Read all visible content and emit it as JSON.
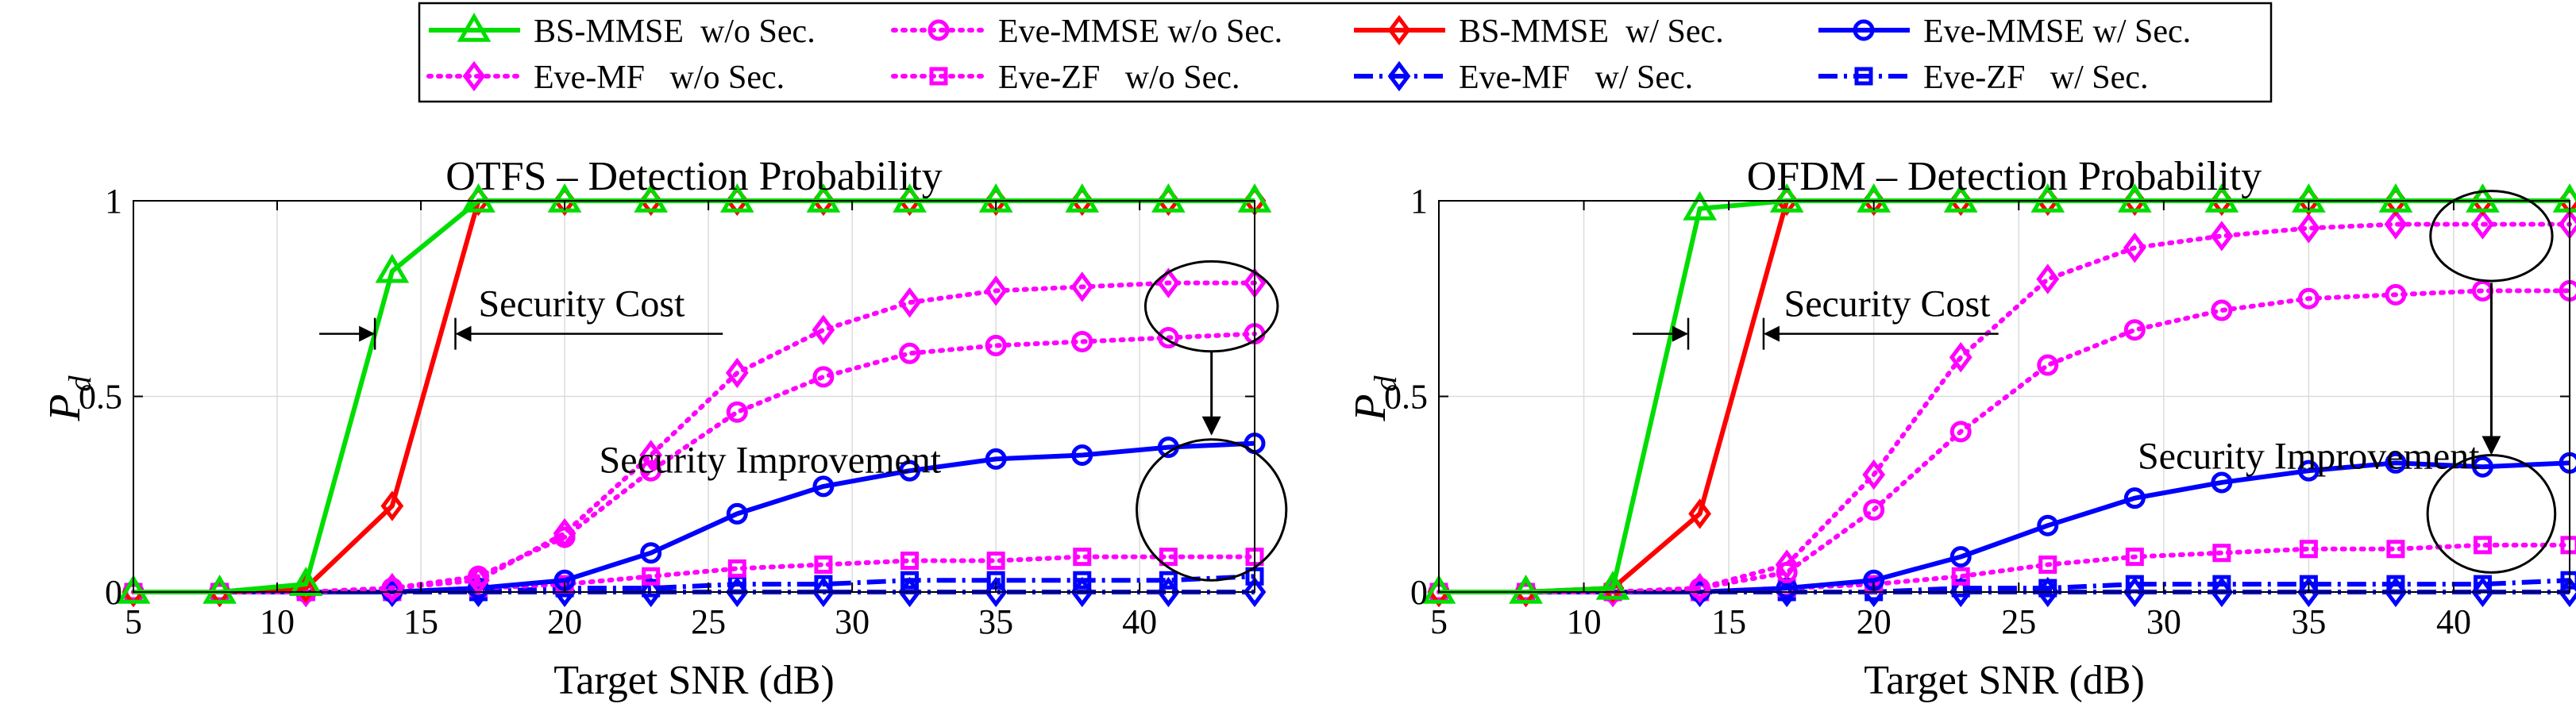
{
  "legend": {
    "entries": [
      {
        "label": "BS-MMSE  w/o Sec.",
        "series": "bs_mmse_wo"
      },
      {
        "label": "Eve-MMSE w/o Sec.",
        "series": "eve_mmse_wo"
      },
      {
        "label": "BS-MMSE  w/ Sec.",
        "series": "bs_mmse_w"
      },
      {
        "label": "Eve-MMSE w/ Sec.",
        "series": "eve_mmse_w"
      },
      {
        "label": "Eve-MF   w/o Sec.",
        "series": "eve_mf_wo"
      },
      {
        "label": "Eve-ZF   w/o Sec.",
        "series": "eve_zf_wo"
      },
      {
        "label": "Eve-MF   w/ Sec.",
        "series": "eve_mf_w"
      },
      {
        "label": "Eve-ZF   w/ Sec.",
        "series": "eve_zf_w"
      }
    ]
  },
  "styles": {
    "bs_mmse_wo": {
      "color": "#00dd00",
      "dash": "solid",
      "marker": "triangle"
    },
    "bs_mmse_w": {
      "color": "#ff0000",
      "dash": "solid",
      "marker": "diamond"
    },
    "eve_mmse_wo": {
      "color": "#ff00ff",
      "dash": "dotted",
      "marker": "circle"
    },
    "eve_mf_wo": {
      "color": "#ff00ff",
      "dash": "dotted",
      "marker": "diamond"
    },
    "eve_zf_wo": {
      "color": "#ff00ff",
      "dash": "dotted",
      "marker": "square"
    },
    "eve_mmse_w": {
      "color": "#0000ff",
      "dash": "solid",
      "marker": "circle"
    },
    "eve_mf_w": {
      "color": "#0000ff",
      "dash": "dashdot",
      "marker": "diamond"
    },
    "eve_zf_w": {
      "color": "#0000ff",
      "dash": "dashdot",
      "marker": "square"
    }
  },
  "chart_data": [
    {
      "type": "line",
      "title": "OTFS – Detection Probability",
      "xlabel": "Target SNR (dB)",
      "ylabel": "P",
      "ylabel_sub": "d",
      "xlim": [
        5,
        44
      ],
      "ylim": [
        0,
        1
      ],
      "xticks": [
        5,
        10,
        15,
        20,
        25,
        30,
        35,
        40
      ],
      "yticks": [
        0,
        0.5,
        1
      ],
      "ytick_labels": [
        "0",
        "0.5",
        "1"
      ],
      "grid": true,
      "x": [
        5,
        8,
        11,
        14,
        17,
        20,
        23,
        26,
        29,
        32,
        35,
        38,
        41,
        44
      ],
      "series": [
        {
          "key": "bs_mmse_wo",
          "name": "BS-MMSE w/o Sec.",
          "values": [
            0,
            0,
            0.02,
            0.82,
            1,
            1,
            1,
            1,
            1,
            1,
            1,
            1,
            1,
            1
          ]
        },
        {
          "key": "bs_mmse_w",
          "name": "BS-MMSE w/ Sec.",
          "values": [
            0,
            0,
            0.01,
            0.22,
            1,
            1,
            1,
            1,
            1,
            1,
            1,
            1,
            1,
            1
          ]
        },
        {
          "key": "eve_mf_wo",
          "name": "Eve-MF w/o Sec.",
          "values": [
            0,
            0,
            0,
            0.01,
            0.03,
            0.15,
            0.35,
            0.56,
            0.67,
            0.74,
            0.77,
            0.78,
            0.79,
            0.79
          ]
        },
        {
          "key": "eve_mmse_wo",
          "name": "Eve-MMSE w/o Sec.",
          "values": [
            0,
            0,
            0,
            0.01,
            0.04,
            0.14,
            0.31,
            0.46,
            0.55,
            0.61,
            0.63,
            0.64,
            0.65,
            0.66
          ]
        },
        {
          "key": "eve_mmse_w",
          "name": "Eve-MMSE w/ Sec.",
          "values": [
            0,
            0,
            0,
            0,
            0.01,
            0.03,
            0.1,
            0.2,
            0.27,
            0.31,
            0.34,
            0.35,
            0.37,
            0.38
          ]
        },
        {
          "key": "eve_zf_wo",
          "name": "Eve-ZF w/o Sec.",
          "values": [
            0,
            0,
            0,
            0,
            0.01,
            0.02,
            0.04,
            0.06,
            0.07,
            0.08,
            0.08,
            0.09,
            0.09,
            0.09
          ]
        },
        {
          "key": "eve_zf_w",
          "name": "Eve-ZF w/ Sec.",
          "values": [
            0,
            0,
            0,
            0,
            0,
            0.01,
            0.01,
            0.02,
            0.02,
            0.03,
            0.03,
            0.03,
            0.03,
            0.04
          ]
        },
        {
          "key": "eve_mf_w",
          "name": "Eve-MF w/ Sec.",
          "values": [
            0,
            0,
            0,
            0,
            0,
            0,
            0,
            0,
            0,
            0,
            0,
            0,
            0,
            0
          ]
        }
      ],
      "annotations": {
        "security_cost": "Security Cost",
        "security_improvement": "Security Improvement",
        "cost_arrow_x": [
          13.4,
          16.2
        ],
        "cost_label_pos": [
          17.0,
          0.705
        ],
        "cost_line_span": [
          13.4,
          25.5
        ],
        "cost_y": 0.66,
        "improvement_label_pos": [
          21.2,
          0.305
        ],
        "top_ellipse": {
          "cx": 42.5,
          "cy": 0.73,
          "rx": 2.3,
          "ry": 0.115
        },
        "bottom_ellipse": {
          "cx": 42.5,
          "cy": 0.21,
          "rx": 2.6,
          "ry": 0.18
        },
        "arrow": {
          "x": 42.5,
          "y_from": 0.615,
          "y_to": 0.405
        }
      }
    },
    {
      "type": "line",
      "title": "OFDM – Detection Probability",
      "xlabel": "Target SNR (dB)",
      "ylabel": "P",
      "ylabel_sub": "d",
      "xlim": [
        5,
        44
      ],
      "ylim": [
        0,
        1
      ],
      "xticks": [
        5,
        10,
        15,
        20,
        25,
        30,
        35,
        40
      ],
      "yticks": [
        0,
        0.5,
        1
      ],
      "ytick_labels": [
        "0",
        "0.5",
        "1"
      ],
      "grid": true,
      "x": [
        5,
        8,
        11,
        14,
        17,
        20,
        23,
        26,
        29,
        32,
        35,
        38,
        41,
        44
      ],
      "series": [
        {
          "key": "bs_mmse_wo",
          "name": "BS-MMSE w/o Sec.",
          "values": [
            0,
            0,
            0.01,
            0.98,
            1,
            1,
            1,
            1,
            1,
            1,
            1,
            1,
            1,
            1
          ]
        },
        {
          "key": "bs_mmse_w",
          "name": "BS-MMSE w/ Sec.",
          "values": [
            0,
            0,
            0.01,
            0.2,
            1,
            1,
            1,
            1,
            1,
            1,
            1,
            1,
            1,
            1
          ]
        },
        {
          "key": "eve_mf_wo",
          "name": "Eve-MF w/o Sec.",
          "values": [
            0,
            0,
            0,
            0.01,
            0.07,
            0.3,
            0.6,
            0.8,
            0.88,
            0.91,
            0.93,
            0.94,
            0.94,
            0.94
          ]
        },
        {
          "key": "eve_mmse_wo",
          "name": "Eve-MMSE w/o Sec.",
          "values": [
            0,
            0,
            0,
            0.01,
            0.05,
            0.21,
            0.41,
            0.58,
            0.67,
            0.72,
            0.75,
            0.76,
            0.77,
            0.77
          ]
        },
        {
          "key": "eve_mmse_w",
          "name": "Eve-MMSE w/ Sec.",
          "values": [
            0,
            0,
            0,
            0,
            0.01,
            0.03,
            0.09,
            0.17,
            0.24,
            0.28,
            0.31,
            0.33,
            0.32,
            0.33
          ]
        },
        {
          "key": "eve_zf_wo",
          "name": "Eve-ZF w/o Sec.",
          "values": [
            0,
            0,
            0,
            0,
            0.01,
            0.02,
            0.04,
            0.07,
            0.09,
            0.1,
            0.11,
            0.11,
            0.12,
            0.12
          ]
        },
        {
          "key": "eve_zf_w",
          "name": "Eve-ZF w/ Sec.",
          "values": [
            0,
            0,
            0,
            0,
            0,
            0,
            0.01,
            0.01,
            0.02,
            0.02,
            0.02,
            0.02,
            0.02,
            0.03
          ]
        },
        {
          "key": "eve_mf_w",
          "name": "Eve-MF w/ Sec.",
          "values": [
            0,
            0,
            0,
            0,
            0,
            0,
            0,
            0,
            0,
            0,
            0,
            0,
            0,
            0
          ]
        }
      ],
      "annotations": {
        "security_cost": "Security Cost",
        "security_improvement": "Security Improvement",
        "cost_arrow_x": [
          13.6,
          16.2
        ],
        "cost_label_pos": [
          16.9,
          0.705
        ],
        "cost_line_span": [
          13.6,
          24.3
        ],
        "cost_y": 0.66,
        "improvement_label_pos": [
          29.1,
          0.315
        ],
        "top_ellipse": {
          "cx": 41.3,
          "cy": 0.91,
          "rx": 2.1,
          "ry": 0.115
        },
        "bottom_ellipse": {
          "cx": 41.3,
          "cy": 0.2,
          "rx": 2.2,
          "ry": 0.15
        },
        "arrow": {
          "x": 41.3,
          "y_from": 0.79,
          "y_to": 0.355
        }
      }
    }
  ]
}
